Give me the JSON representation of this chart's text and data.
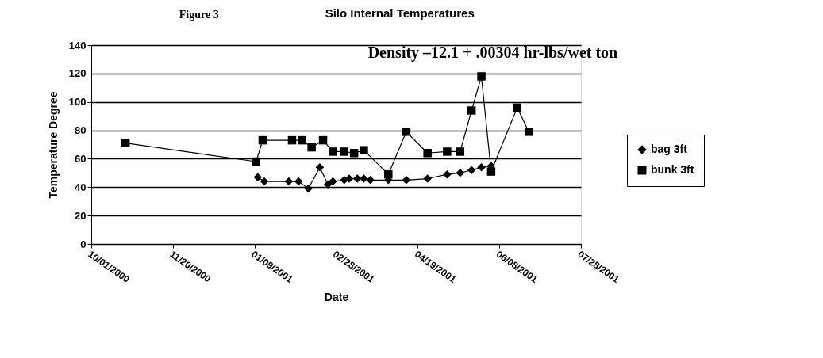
{
  "chart_data": {
    "type": "line",
    "title": "Silo Internal Temperatures",
    "xlabel": "Date",
    "ylabel": "Temperature Degree",
    "annotations": [
      "Figure 3",
      "Density –12.1 + .00304 hr-lbs/wet ton"
    ],
    "series": [
      {
        "name": "bag 3ft",
        "color": "#000000",
        "marker": "diamond",
        "x": [
          "2001-01-11",
          "2001-01-15",
          "2001-01-30",
          "2001-02-05",
          "2001-02-11",
          "2001-02-18",
          "2001-02-23",
          "2001-02-26",
          "2001-03-05",
          "2001-03-08",
          "2001-03-13",
          "2001-03-17",
          "2001-03-21",
          "2001-04-01",
          "2001-04-12",
          "2001-04-25",
          "2001-05-07",
          "2001-05-15",
          "2001-05-22",
          "2001-05-28",
          "2001-06-03"
        ],
        "values": [
          47,
          44,
          44,
          44,
          39,
          54,
          42,
          44,
          45,
          46,
          46,
          46,
          45,
          45,
          45,
          46,
          49,
          50,
          52,
          54,
          55
        ]
      },
      {
        "name": "bunk 3ft",
        "color": "#000000",
        "marker": "square",
        "x": [
          "2000-10-22",
          "2001-01-10",
          "2001-01-14",
          "2001-02-01",
          "2001-02-07",
          "2001-02-13",
          "2001-02-20",
          "2001-02-26",
          "2001-03-05",
          "2001-03-11",
          "2001-03-17",
          "2001-04-01",
          "2001-04-12",
          "2001-04-25",
          "2001-05-07",
          "2001-05-15",
          "2001-05-22",
          "2001-05-28",
          "2001-06-03",
          "2001-06-19",
          "2001-06-26"
        ],
        "values": [
          71,
          58,
          73,
          73,
          73,
          68,
          73,
          65,
          65,
          64,
          66,
          49,
          79,
          64,
          65,
          65,
          94,
          118,
          51,
          96,
          79
        ]
      }
    ],
    "xlim": [
      "2000-10-01",
      "2001-07-28"
    ],
    "xticks": [
      {
        "value": "2000-10-01",
        "label": "10/01/2000"
      },
      {
        "value": "2000-11-20",
        "label": "11/20/2000"
      },
      {
        "value": "2001-01-09",
        "label": "01/09/2001"
      },
      {
        "value": "2001-02-28",
        "label": "02/28/2001"
      },
      {
        "value": "2001-04-19",
        "label": "04/19/2001"
      },
      {
        "value": "2001-06-08",
        "label": "06/08/2001"
      },
      {
        "value": "2001-07-28",
        "label": "07/28/2001"
      }
    ],
    "ylim": [
      0,
      140
    ],
    "yticks": [
      0,
      20,
      40,
      60,
      80,
      100,
      120,
      140
    ],
    "grid": "y",
    "legend": "right",
    "line_style": "solid"
  }
}
